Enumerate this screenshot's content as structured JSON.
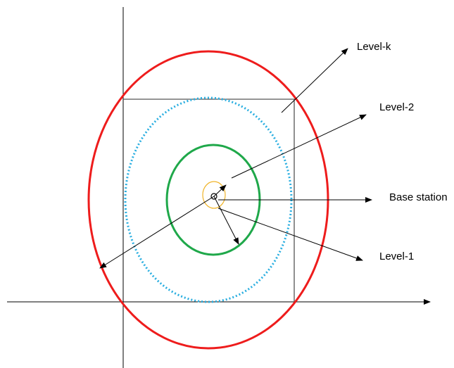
{
  "labels": {
    "level_k": "Level-k",
    "level_2": "Level-2",
    "base_station": "Base station",
    "level_1": "Level-1"
  },
  "colors": {
    "axis": "#000000",
    "square": "#555555",
    "level_k_circle": "#ee1c1c",
    "level_2_circle": "#29aee0",
    "level_1_circle": "#1fa84a",
    "inner_circle": "#f0b429",
    "arrow": "#000000"
  }
}
